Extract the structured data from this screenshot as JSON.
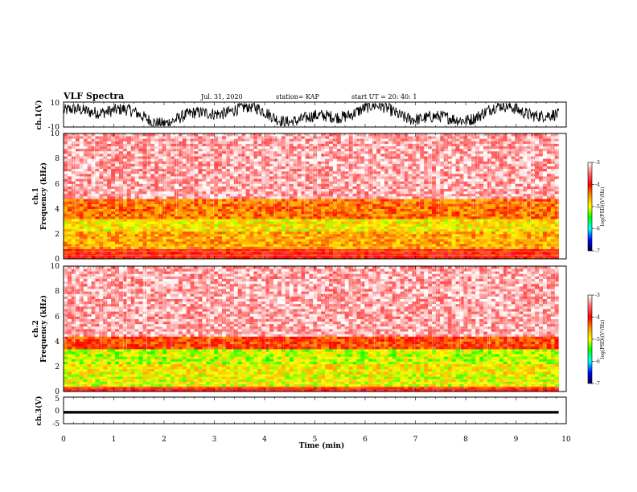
{
  "header": {
    "title": "VLF Spectra",
    "date": "Jul. 31, 2020",
    "station": "station= KAP",
    "start": "start  UT =   20: 40: 1"
  },
  "chart_data": [
    {
      "type": "line",
      "panel": "ch1-waveform",
      "ylabel": "ch.1(V)",
      "yticklabels": [
        "10",
        "-10"
      ],
      "ylim": [
        -10,
        10
      ],
      "xlim": [
        0,
        10
      ],
      "data_end_min": 9.85,
      "approx_trace_range": [
        -9,
        9
      ]
    },
    {
      "type": "heatmap",
      "panel": "ch1-spectrogram",
      "ylabel_channel": "ch.1",
      "ylabel": "Frequency (kHz)",
      "yticklabels": [
        "0",
        "2",
        "4",
        "6",
        "8",
        "10"
      ],
      "ylim": [
        0,
        10
      ],
      "xlim": [
        0,
        10
      ],
      "data_end_min": 9.85,
      "approx_log_psd_by_band": [
        {
          "band_khz": [
            0,
            0.8
          ],
          "level": -4.0
        },
        {
          "band_khz": [
            0.8,
            2.2
          ],
          "level": -4.6
        },
        {
          "band_khz": [
            2.2,
            3.2
          ],
          "level": -4.9
        },
        {
          "band_khz": [
            3.2,
            4.8
          ],
          "level": -4.4
        },
        {
          "band_khz": [
            4.8,
            10
          ],
          "level": -3.3
        }
      ],
      "colorbar": {
        "ticks": [
          "-3",
          "-4",
          "-5",
          "-6",
          "-7"
        ],
        "range": [
          -7,
          -3
        ],
        "label": "log(PSD)(V²/Hz)"
      }
    },
    {
      "type": "heatmap",
      "panel": "ch2-spectrogram",
      "ylabel_channel": "ch.2",
      "ylabel": "Frequency (kHz)",
      "yticklabels": [
        "0",
        "2",
        "4",
        "6",
        "8",
        "10"
      ],
      "ylim": [
        0,
        10
      ],
      "xlim": [
        0,
        10
      ],
      "data_end_min": 9.85,
      "approx_log_psd_by_band": [
        {
          "band_khz": [
            0,
            0.5
          ],
          "level": -4.0
        },
        {
          "band_khz": [
            0.5,
            1.5
          ],
          "level": -5.0
        },
        {
          "band_khz": [
            1.5,
            2.2
          ],
          "level": -4.9
        },
        {
          "band_khz": [
            2.2,
            3.4
          ],
          "level": -5.1
        },
        {
          "band_khz": [
            3.4,
            4.4
          ],
          "level": -4.2
        },
        {
          "band_khz": [
            4.4,
            10
          ],
          "level": -3.3
        }
      ],
      "colorbar": {
        "ticks": [
          "-3",
          "-4",
          "-5",
          "-6",
          "-7"
        ],
        "range": [
          -7,
          -3
        ],
        "label": "log(PSD)(V²/Hz)"
      }
    },
    {
      "type": "line",
      "panel": "ch3-waveform",
      "ylabel": "ch.3(V)",
      "yticklabels": [
        "5",
        "0",
        "-5"
      ],
      "ylim": [
        -5,
        5
      ],
      "xlim": [
        0,
        10
      ],
      "data_end_min": 9.85,
      "approx_trace_range": [
        -1.2,
        -0.2
      ],
      "xlabel": "Time (min)",
      "xticklabels": [
        "0",
        "1",
        "2",
        "3",
        "4",
        "5",
        "6",
        "7",
        "8",
        "9",
        "10"
      ]
    }
  ]
}
